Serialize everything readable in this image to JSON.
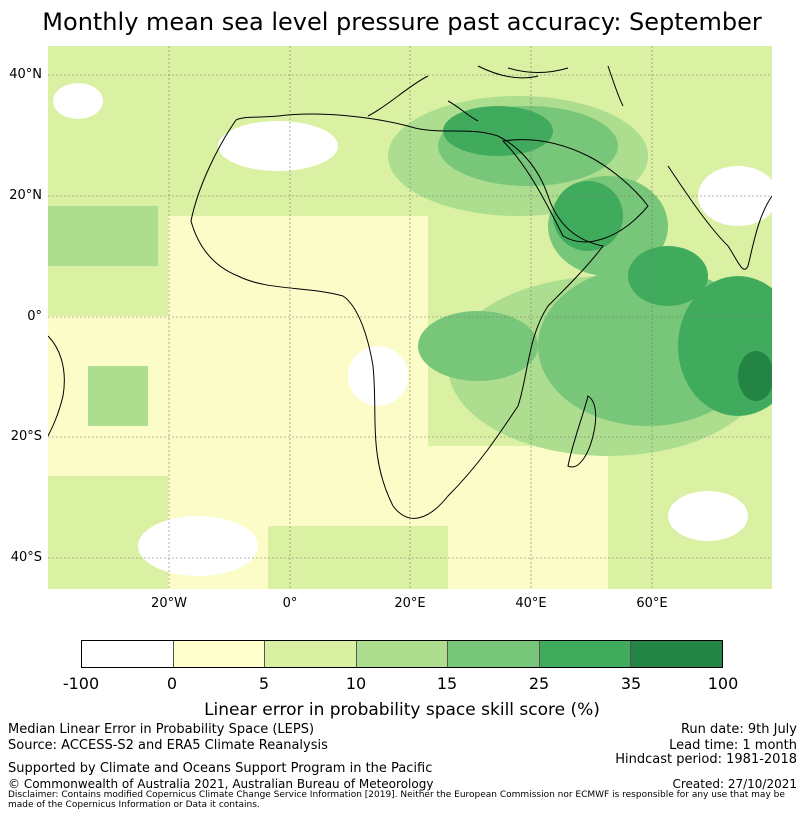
{
  "title": "Monthly mean sea level pressure past accuracy: September",
  "map": {
    "lat_labels": [
      "40°N",
      "20°N",
      "0°",
      "20°S",
      "40°S"
    ],
    "lon_labels": [
      "20°W",
      "0°",
      "20°E",
      "40°E",
      "60°E"
    ],
    "colors": {
      "water_land_base": "#fbfcc8",
      "light_green": "#daf0a2",
      "mid_green": "#addd8e",
      "green": "#78c679",
      "dark_green": "#41ab5d",
      "darkest_green": "#238443",
      "coastline": "#000000",
      "grid": "#777777"
    }
  },
  "colorbar": {
    "ticks": [
      "-100",
      "0",
      "5",
      "10",
      "15",
      "25",
      "35",
      "100"
    ],
    "colors": [
      "#ffffff",
      "#ffffcc",
      "#d9f0a3",
      "#addd8e",
      "#78c679",
      "#41ab5d",
      "#238443"
    ],
    "label": "Linear error in probability space skill score (%)"
  },
  "footer": {
    "left_line1": "Median Linear Error in Probability Space (LEPS)",
    "left_line2": "Source: ACCESS-S2 and ERA5 Climate Reanalysis",
    "left_line3": "Supported by Climate and Oceans Support Program in the Pacific",
    "left_line4": "© Commonwealth of Australia 2021, Australian Bureau of Meteorology",
    "run_date": "Run date: 9th July",
    "lead_time": "Lead time: 1 month",
    "hindcast": "Hindcast period: 1981-2018",
    "created": "Created: 27/10/2021",
    "disclaimer": "Disclaimer: Contains modified Copernicus Climate Change Service Information [2019]. Neither the European Commission nor ECMWF is responsible for any use that may be made of the Copernicus Information or Data it contains."
  }
}
